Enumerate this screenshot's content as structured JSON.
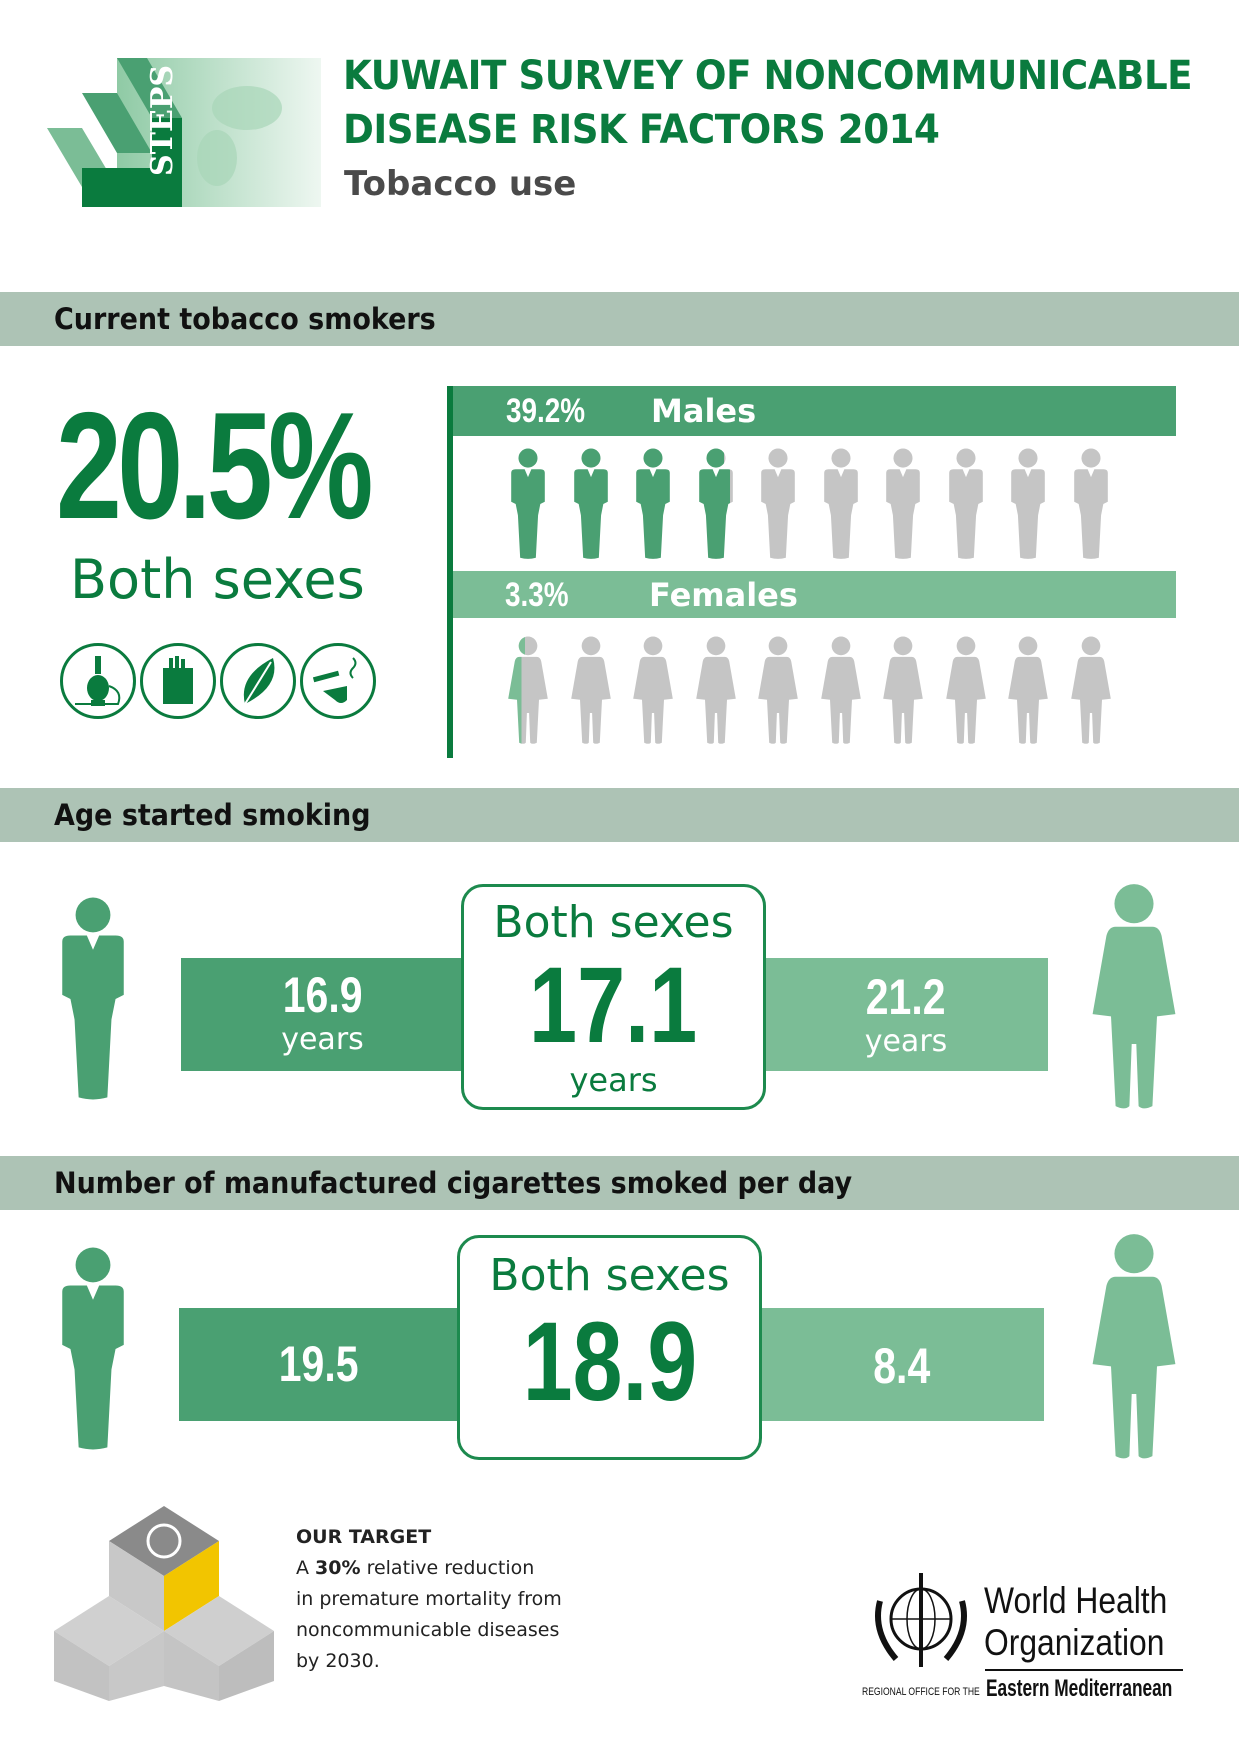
{
  "header": {
    "logo_text": "STEPS",
    "title_line1": "KUWAIT SURVEY OF NONCOMMUNICABLE",
    "title_line2": "DISEASE RISK FACTORS 2014",
    "subtitle": "Tobacco use"
  },
  "current_smokers": {
    "heading": "Current tobacco smokers",
    "both_value": "20.5%",
    "both_label": "Both sexes",
    "icons": [
      "hookah-icon",
      "cigarette-pack-icon",
      "tobacco-leaf-icon",
      "pipe-cigarette-icon"
    ],
    "males": {
      "value": "39.2%",
      "label": "Males",
      "percent": 39.2
    },
    "females": {
      "value": "3.3%",
      "label": "Females",
      "percent": 3.3
    }
  },
  "age_started": {
    "heading": "Age started smoking",
    "male": {
      "value": "16.9",
      "unit": "years"
    },
    "both": {
      "label": "Both sexes",
      "value": "17.1",
      "unit": "years"
    },
    "female": {
      "value": "21.2",
      "unit": "years"
    }
  },
  "cigarettes_per_day": {
    "heading": "Number of manufactured cigarettes smoked per day",
    "male": {
      "value": "19.5"
    },
    "both": {
      "label": "Both sexes",
      "value": "18.9"
    },
    "female": {
      "value": "8.4"
    }
  },
  "target": {
    "heading": "OUR TARGET",
    "line1_pre": "A ",
    "line1_bold": "30%",
    "line1_post": " relative reduction",
    "line2": "in premature mortality from",
    "line3": "noncommunicable diseases",
    "line4": "by 2030."
  },
  "who": {
    "line1": "World Health",
    "line2": "Organization",
    "regional_prefix": "REGIONAL OFFICE FOR THE",
    "region": "Eastern Mediterranean"
  },
  "colors": {
    "dark_green": "#0a7b3e",
    "male_green": "#4aa072",
    "female_green": "#7bbd96",
    "band": "#adc3b5",
    "inactive": "#c5c5c5"
  }
}
